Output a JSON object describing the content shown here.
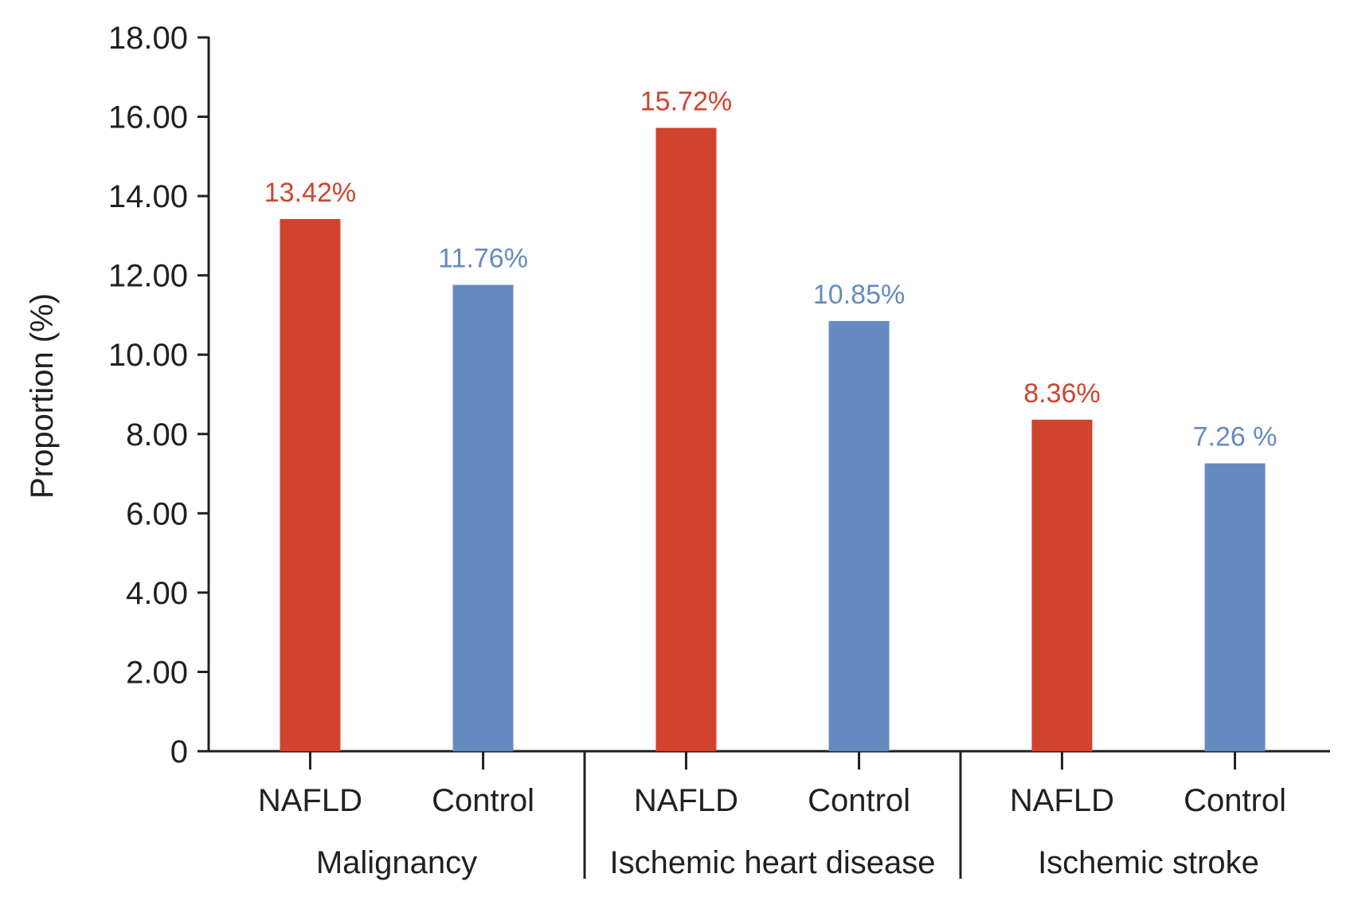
{
  "chart_data": {
    "type": "bar",
    "title": "",
    "xlabel": "",
    "ylabel": "Proportion (%)",
    "ylim": [
      0,
      18
    ],
    "yticks": [
      "0",
      "2.00",
      "4.00",
      "6.00",
      "8.00",
      "10.00",
      "12.00",
      "14.00",
      "16.00",
      "18.00"
    ],
    "grid": false,
    "groups": [
      {
        "name": "Malignancy",
        "bars": [
          {
            "category": "NAFLD",
            "value": 13.42,
            "label": "13.42%",
            "color": "#d1432e"
          },
          {
            "category": "Control",
            "value": 11.76,
            "label": "11.76%",
            "color": "#658bc1"
          }
        ]
      },
      {
        "name": "Ischemic heart disease",
        "bars": [
          {
            "category": "NAFLD",
            "value": 15.72,
            "label": "15.72%",
            "color": "#d1432e"
          },
          {
            "category": "Control",
            "value": 10.85,
            "label": "10.85%",
            "color": "#658bc1"
          }
        ]
      },
      {
        "name": "Ischemic stroke",
        "bars": [
          {
            "category": "NAFLD",
            "value": 8.36,
            "label": "8.36%",
            "color": "#d1432e"
          },
          {
            "category": "Control",
            "value": 7.26,
            "label": "7.26 %",
            "color": "#658bc1"
          }
        ]
      }
    ]
  }
}
